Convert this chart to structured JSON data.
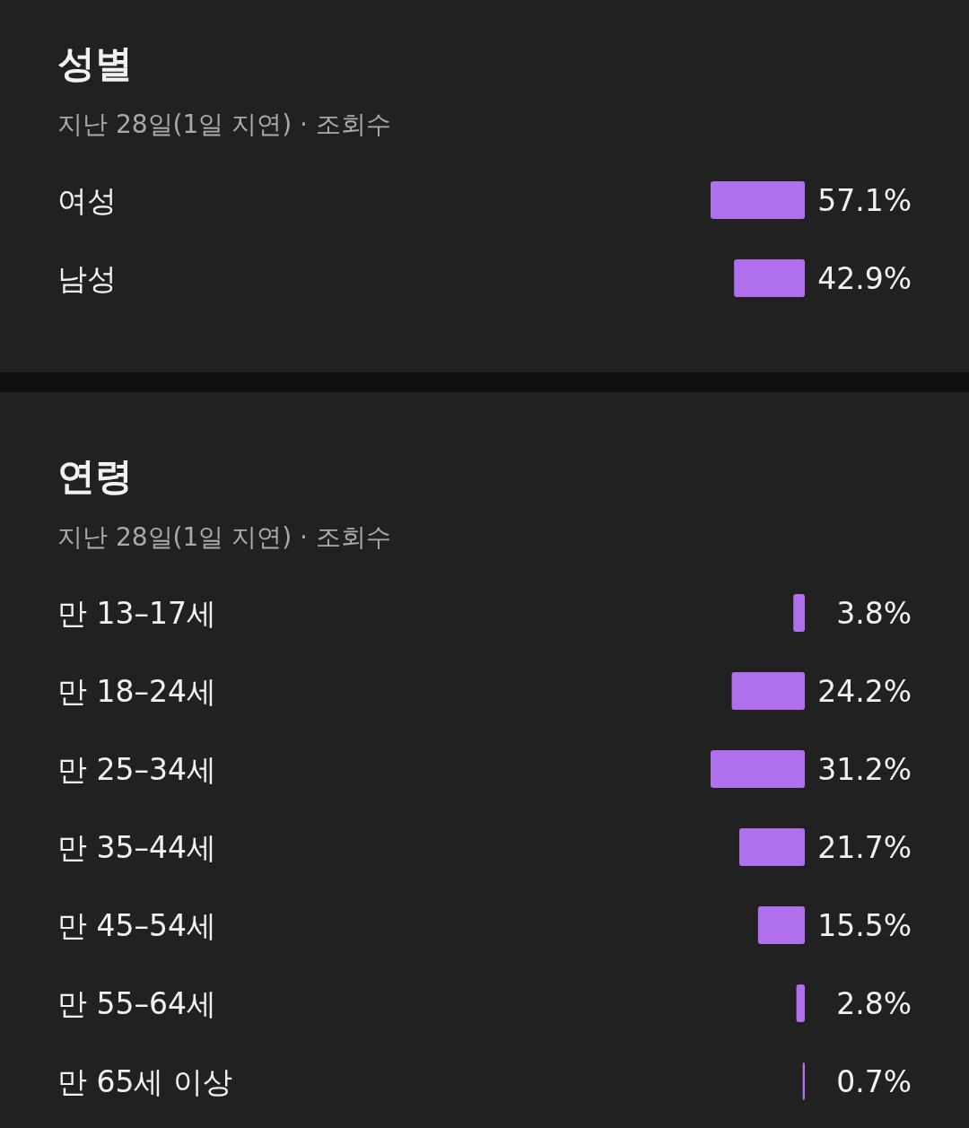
{
  "chart_data": [
    {
      "type": "bar",
      "orientation": "horizontal",
      "title": "성별",
      "subtitle": "지난 28일(1일 지연) · 조회수",
      "categories": [
        "여성",
        "남성"
      ],
      "values": [
        57.1,
        42.9
      ],
      "color": "#b070ee",
      "data_labels": true,
      "value_labels": [
        "57.1%",
        "42.9%"
      ]
    },
    {
      "type": "bar",
      "orientation": "horizontal",
      "title": "연령",
      "subtitle": "지난 28일(1일 지연) · 조회수",
      "categories": [
        "만 13–17세",
        "만 18–24세",
        "만 25–34세",
        "만 35–44세",
        "만 45–54세",
        "만 55–64세",
        "만 65세 이상"
      ],
      "values": [
        3.8,
        24.2,
        31.2,
        21.7,
        15.5,
        2.8,
        0.7
      ],
      "color": "#b070ee",
      "data_labels": true,
      "value_labels": [
        "3.8%",
        "24.2%",
        "31.2%",
        "21.7%",
        "15.5%",
        "2.8%",
        "0.7%"
      ]
    }
  ]
}
